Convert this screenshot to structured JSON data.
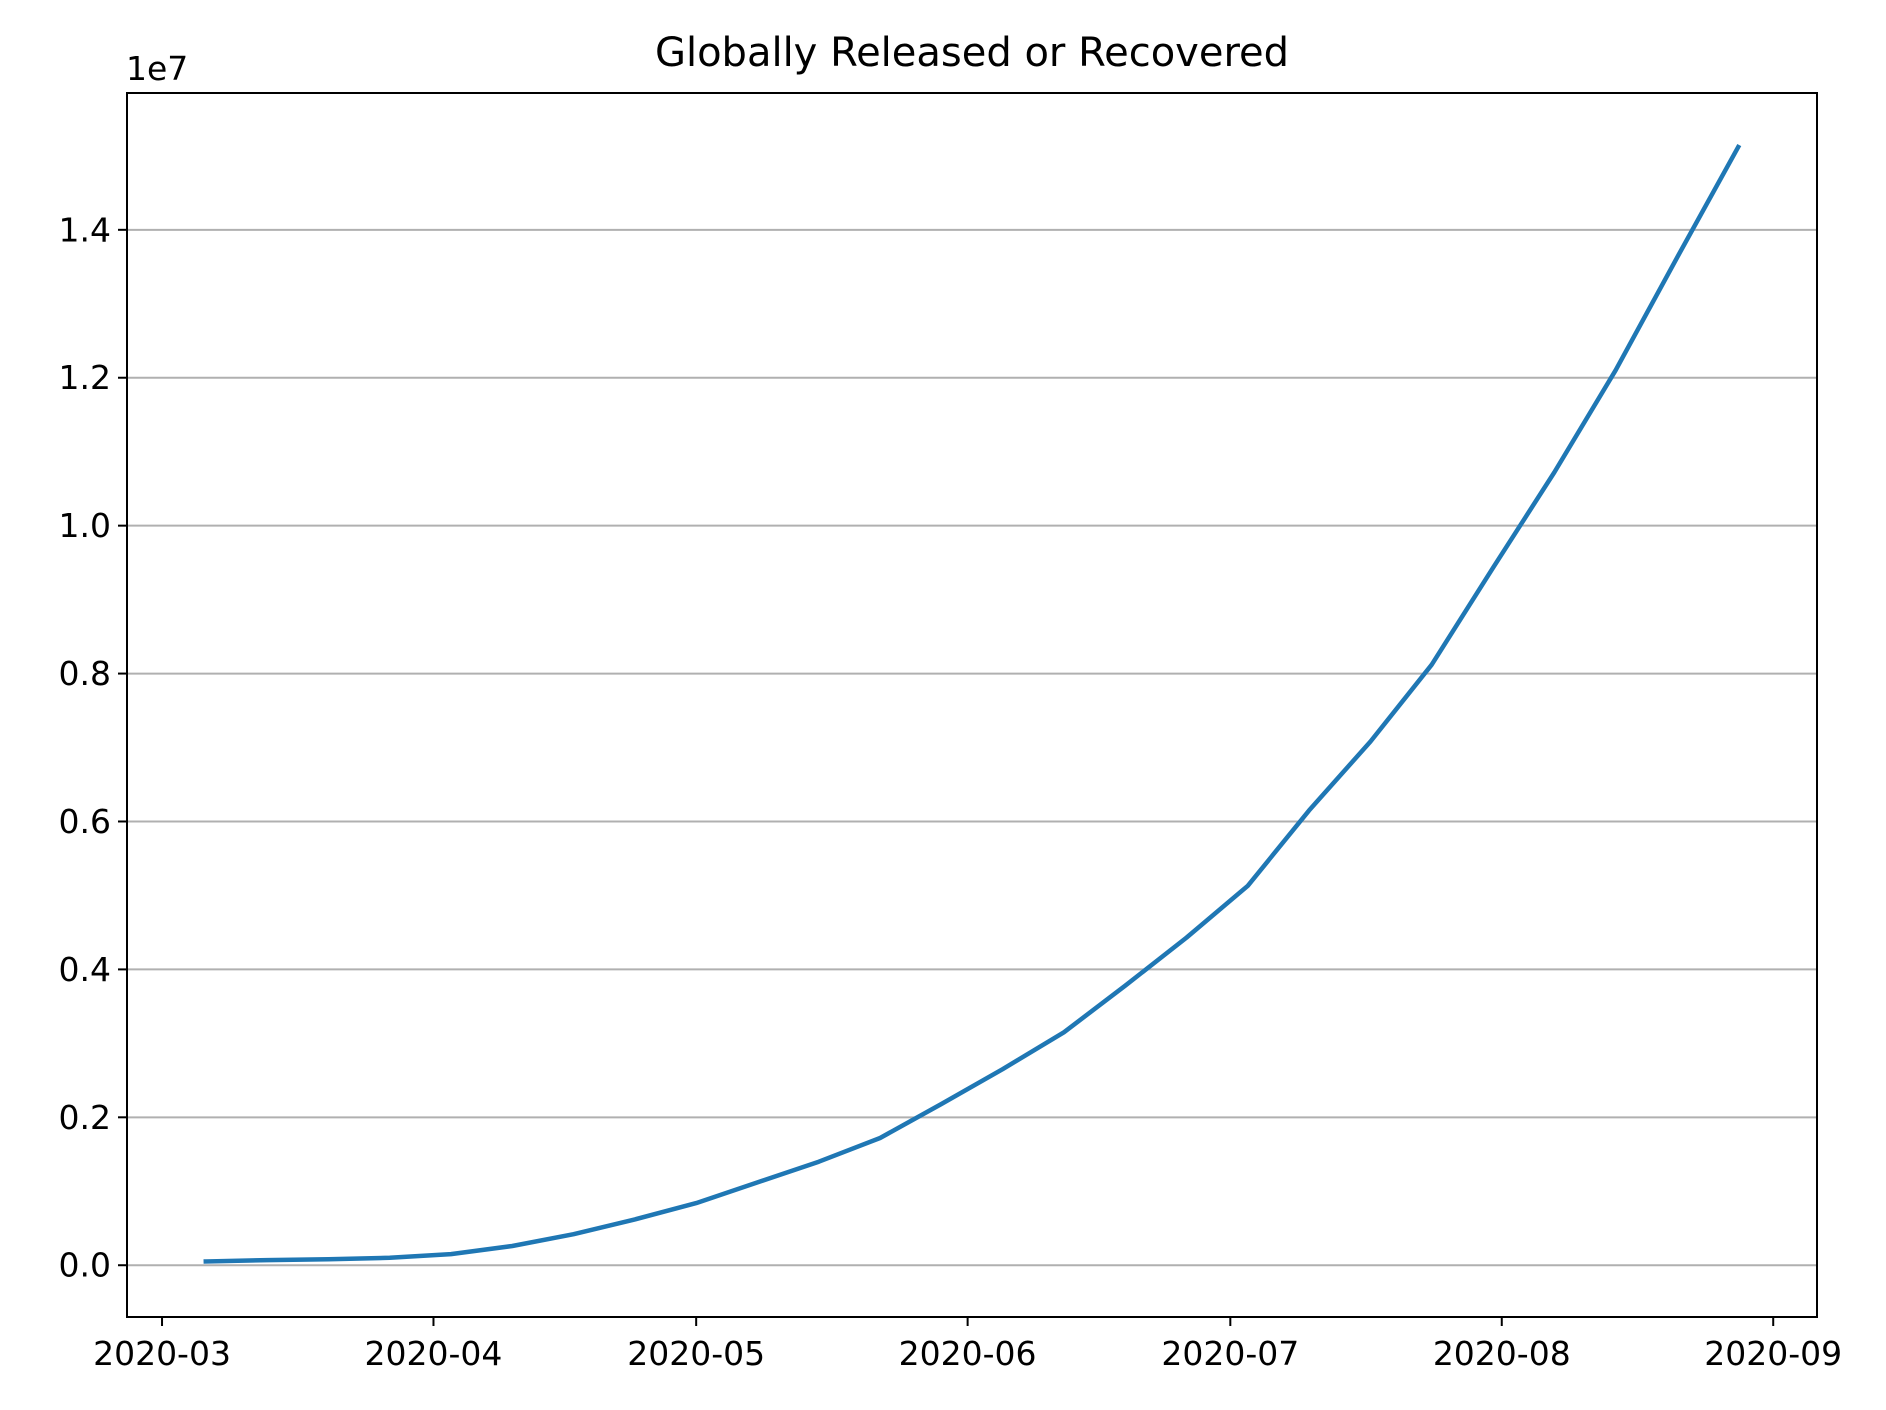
{
  "chart_data": {
    "type": "line",
    "title": "Globally Released or Recovered",
    "xlabel": "",
    "ylabel": "",
    "y_offset_label": "1e7",
    "grid": "y-major",
    "legend": "none",
    "xlim": [
      "2020-02-26",
      "2020-09-06"
    ],
    "ylim": [
      -0.07,
      1.585
    ],
    "x_ticks": [
      "2020-03",
      "2020-04",
      "2020-05",
      "2020-06",
      "2020-07",
      "2020-08",
      "2020-09"
    ],
    "x_tick_dates": [
      "2020-03-01",
      "2020-04-01",
      "2020-05-01",
      "2020-06-01",
      "2020-07-01",
      "2020-08-01",
      "2020-09-01"
    ],
    "y_ticks": [
      "0.0",
      "0.2",
      "0.4",
      "0.6",
      "0.8",
      "1.0",
      "1.2",
      "1.4"
    ],
    "y_tick_values": [
      0.0,
      0.2,
      0.4,
      0.6,
      0.8,
      1.0,
      1.2,
      1.4
    ],
    "series": [
      {
        "color": "#1f77b4",
        "x": [
          "2020-03-06",
          "2020-03-13",
          "2020-03-20",
          "2020-03-27",
          "2020-04-03",
          "2020-04-10",
          "2020-04-17",
          "2020-04-24",
          "2020-05-01",
          "2020-05-08",
          "2020-05-15",
          "2020-05-22",
          "2020-05-29",
          "2020-06-05",
          "2020-06-12",
          "2020-06-19",
          "2020-06-26",
          "2020-07-03",
          "2020-07-10",
          "2020-07-17",
          "2020-07-24",
          "2020-07-31",
          "2020-08-07",
          "2020-08-14",
          "2020-08-21",
          "2020-08-28"
        ],
        "values": [
          0.005,
          0.007,
          0.008,
          0.01,
          0.015,
          0.026,
          0.042,
          0.062,
          0.084,
          0.112,
          0.14,
          0.172,
          0.218,
          0.265,
          0.315,
          0.378,
          0.443,
          0.513,
          0.615,
          0.708,
          0.812,
          0.943,
          1.072,
          1.21,
          1.362,
          1.512
        ]
      }
    ]
  }
}
